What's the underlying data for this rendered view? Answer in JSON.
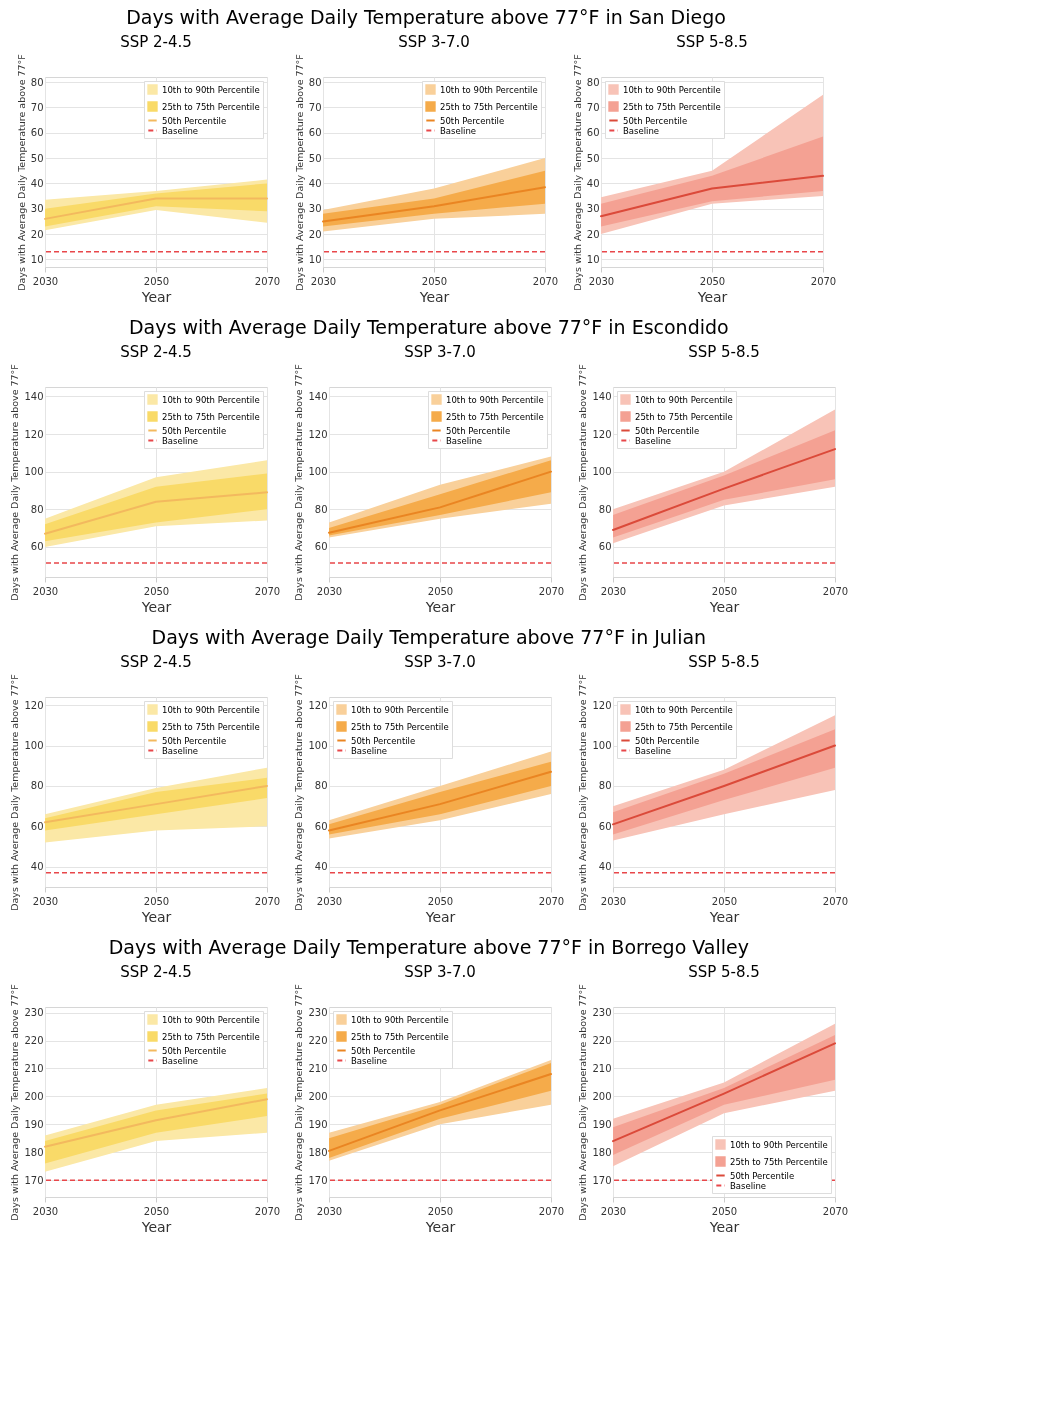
{
  "chart_data": [
    {
      "type": "line",
      "subtitle": "Days with Average Daily Temperature above 77°F in San Diego",
      "title": "SSP 2-4.5",
      "xlabel": "Year",
      "ylabel": "Days with Average Daily Temperature above 77°F",
      "x": [
        2030,
        2050,
        2070
      ],
      "xlim": [
        2030,
        2070
      ],
      "xticks": [
        2030,
        2050,
        2070
      ],
      "ylim": [
        7,
        82
      ],
      "yticks": [
        10,
        20,
        30,
        40,
        50,
        60,
        70,
        80
      ],
      "grid": true,
      "legend": "top right",
      "series": [
        {
          "name": "10th to 90th Percentile",
          "type": "area",
          "color": "#fbe8a6",
          "values": [
            null,
            null,
            null
          ],
          "lower": [
            21.5,
            29.5,
            24.5
          ],
          "upper": [
            33.5,
            37,
            41.5
          ]
        },
        {
          "name": "25th to 75th Percentile",
          "type": "area",
          "color": "#f9da68",
          "values": [
            null,
            null,
            null
          ],
          "lower": [
            23,
            31,
            29
          ],
          "upper": [
            30,
            36,
            40
          ]
        },
        {
          "name": "50th Percentile",
          "type": "line",
          "color": "#f3b95e",
          "values": [
            26,
            34,
            34
          ]
        }
      ],
      "ref_lines": [
        {
          "axis": "y",
          "value": 13,
          "label": "Baseline",
          "color": "#e8474a",
          "line_style": "dashed"
        }
      ]
    },
    {
      "type": "line",
      "title": "SSP 3-7.0",
      "xlabel": "Year",
      "ylabel": "Days with Average Daily Temperature above 77°F",
      "x": [
        2030,
        2050,
        2070
      ],
      "xlim": [
        2030,
        2070
      ],
      "xticks": [
        2030,
        2050,
        2070
      ],
      "ylim": [
        7,
        82
      ],
      "yticks": [
        10,
        20,
        30,
        40,
        50,
        60,
        70,
        80
      ],
      "grid": true,
      "legend": "top right",
      "series": [
        {
          "name": "10th to 90th Percentile",
          "type": "area",
          "color": "#f9d09a",
          "values": [
            null,
            null,
            null
          ],
          "lower": [
            21,
            26,
            28
          ],
          "upper": [
            29.5,
            38,
            50
          ]
        },
        {
          "name": "25th to 75th Percentile",
          "type": "area",
          "color": "#f5ab4a",
          "values": [
            null,
            null,
            null
          ],
          "lower": [
            23,
            28,
            32
          ],
          "upper": [
            28,
            34,
            45
          ]
        },
        {
          "name": "50th Percentile",
          "type": "line",
          "color": "#ea8522",
          "values": [
            25,
            31,
            38.5
          ]
        }
      ],
      "ref_lines": [
        {
          "axis": "y",
          "value": 13,
          "label": "Baseline",
          "color": "#e8474a",
          "line_style": "dashed"
        }
      ]
    },
    {
      "type": "line",
      "title": "SSP 5-8.5",
      "xlabel": "Year",
      "ylabel": "Days with Average Daily Temperature above 77°F",
      "x": [
        2030,
        2050,
        2070
      ],
      "xlim": [
        2030,
        2070
      ],
      "xticks": [
        2030,
        2050,
        2070
      ],
      "ylim": [
        7,
        82
      ],
      "yticks": [
        10,
        20,
        30,
        40,
        50,
        60,
        70,
        80
      ],
      "grid": true,
      "legend": "top left",
      "series": [
        {
          "name": "10th to 90th Percentile",
          "type": "area",
          "color": "#f8c3b7",
          "values": [
            null,
            null,
            null
          ],
          "lower": [
            20,
            32,
            35
          ],
          "upper": [
            34.5,
            45,
            75
          ]
        },
        {
          "name": "25th to 75th Percentile",
          "type": "area",
          "color": "#f4a193",
          "values": [
            null,
            null,
            null
          ],
          "lower": [
            23,
            33,
            37
          ],
          "upper": [
            32,
            43,
            58.5
          ]
        },
        {
          "name": "50th Percentile",
          "type": "line",
          "color": "#db4a3a",
          "values": [
            27,
            38,
            43
          ]
        }
      ],
      "ref_lines": [
        {
          "axis": "y",
          "value": 13,
          "label": "Baseline",
          "color": "#e8474a",
          "line_style": "dashed"
        }
      ]
    },
    {
      "type": "line",
      "subtitle": "Days with Average Daily Temperature above 77°F in Escondido",
      "title": "SSP 2-4.5",
      "xlabel": "Year",
      "ylabel": "Days with Average Daily Temperature above 77°F",
      "x": [
        2030,
        2050,
        2070
      ],
      "xlim": [
        2030,
        2070
      ],
      "xticks": [
        2030,
        2050,
        2070
      ],
      "ylim": [
        44,
        145
      ],
      "yticks": [
        60,
        80,
        100,
        120,
        140
      ],
      "grid": true,
      "legend": "top right",
      "series": [
        {
          "name": "10th to 90th Percentile",
          "type": "area",
          "color": "#fbe8a6",
          "values": [
            null,
            null,
            null
          ],
          "lower": [
            60,
            71,
            74
          ],
          "upper": [
            75,
            97,
            106
          ]
        },
        {
          "name": "25th to 75th Percentile",
          "type": "area",
          "color": "#f9da68",
          "values": [
            null,
            null,
            null
          ],
          "lower": [
            63,
            73,
            80
          ],
          "upper": [
            72,
            92,
            99
          ]
        },
        {
          "name": "50th Percentile",
          "type": "line",
          "color": "#f3b95e",
          "values": [
            67,
            84,
            89
          ]
        }
      ],
      "ref_lines": [
        {
          "axis": "y",
          "value": 51.5,
          "label": "Baseline",
          "color": "#e8474a",
          "line_style": "dashed"
        }
      ]
    },
    {
      "type": "line",
      "title": "SSP 3-7.0",
      "xlabel": "Year",
      "ylabel": "Days with Average Daily Temperature above 77°F",
      "x": [
        2030,
        2050,
        2070
      ],
      "xlim": [
        2030,
        2070
      ],
      "xticks": [
        2030,
        2050,
        2070
      ],
      "ylim": [
        44,
        145
      ],
      "yticks": [
        60,
        80,
        100,
        120,
        140
      ],
      "grid": true,
      "legend": "top right",
      "series": [
        {
          "name": "10th to 90th Percentile",
          "type": "area",
          "color": "#f9d09a",
          "values": [
            null,
            null,
            null
          ],
          "lower": [
            65,
            75,
            83
          ],
          "upper": [
            73,
            93,
            108
          ]
        },
        {
          "name": "25th to 75th Percentile",
          "type": "area",
          "color": "#f5ab4a",
          "values": [
            null,
            null,
            null
          ],
          "lower": [
            66,
            77,
            89
          ],
          "upper": [
            70,
            88,
            106
          ]
        },
        {
          "name": "50th Percentile",
          "type": "line",
          "color": "#ea8522",
          "values": [
            67.5,
            81,
            100
          ]
        }
      ],
      "ref_lines": [
        {
          "axis": "y",
          "value": 51.5,
          "label": "Baseline",
          "color": "#e8474a",
          "line_style": "dashed"
        }
      ]
    },
    {
      "type": "line",
      "title": "SSP 5-8.5",
      "xlabel": "Year",
      "ylabel": "Days with Average Daily Temperature above 77°F",
      "x": [
        2030,
        2050,
        2070
      ],
      "xlim": [
        2030,
        2070
      ],
      "xticks": [
        2030,
        2050,
        2070
      ],
      "ylim": [
        44,
        145
      ],
      "yticks": [
        60,
        80,
        100,
        120,
        140
      ],
      "grid": true,
      "legend": "top left",
      "series": [
        {
          "name": "10th to 90th Percentile",
          "type": "area",
          "color": "#f8c3b7",
          "values": [
            null,
            null,
            null
          ],
          "lower": [
            62,
            82,
            92
          ],
          "upper": [
            80,
            100,
            133
          ]
        },
        {
          "name": "25th to 75th Percentile",
          "type": "area",
          "color": "#f4a193",
          "values": [
            null,
            null,
            null
          ],
          "lower": [
            65,
            85,
            96
          ],
          "upper": [
            77,
            98,
            122
          ]
        },
        {
          "name": "50th Percentile",
          "type": "line",
          "color": "#db4a3a",
          "values": [
            69,
            91,
            112
          ]
        }
      ],
      "ref_lines": [
        {
          "axis": "y",
          "value": 51.5,
          "label": "Baseline",
          "color": "#e8474a",
          "line_style": "dashed"
        }
      ]
    },
    {
      "type": "line",
      "subtitle": "Days with Average Daily Temperature above 77°F in Julian",
      "title": "SSP 2-4.5",
      "xlabel": "Year",
      "ylabel": "Days with Average Daily Temperature above 77°F",
      "x": [
        2030,
        2050,
        2070
      ],
      "xlim": [
        2030,
        2070
      ],
      "xticks": [
        2030,
        2050,
        2070
      ],
      "ylim": [
        30,
        124
      ],
      "yticks": [
        40,
        60,
        80,
        100,
        120
      ],
      "grid": true,
      "legend": "top right",
      "series": [
        {
          "name": "10th to 90th Percentile",
          "type": "area",
          "color": "#fbe8a6",
          "values": [
            null,
            null,
            null
          ],
          "lower": [
            52,
            58,
            60
          ],
          "upper": [
            66,
            79,
            89
          ]
        },
        {
          "name": "25th to 75th Percentile",
          "type": "area",
          "color": "#f9da68",
          "values": [
            null,
            null,
            null
          ],
          "lower": [
            58,
            66,
            74
          ],
          "upper": [
            64,
            77,
            84
          ]
        },
        {
          "name": "50th Percentile",
          "type": "line",
          "color": "#f3b95e",
          "values": [
            62,
            71,
            80
          ]
        }
      ],
      "ref_lines": [
        {
          "axis": "y",
          "value": 37,
          "label": "Baseline",
          "color": "#e8474a",
          "line_style": "dashed"
        }
      ]
    },
    {
      "type": "line",
      "title": "SSP 3-7.0",
      "xlabel": "Year",
      "ylabel": "Days with Average Daily Temperature above 77°F",
      "x": [
        2030,
        2050,
        2070
      ],
      "xlim": [
        2030,
        2070
      ],
      "xticks": [
        2030,
        2050,
        2070
      ],
      "ylim": [
        30,
        124
      ],
      "yticks": [
        40,
        60,
        80,
        100,
        120
      ],
      "grid": true,
      "legend": "top left",
      "series": [
        {
          "name": "10th to 90th Percentile",
          "type": "area",
          "color": "#f9d09a",
          "values": [
            null,
            null,
            null
          ],
          "lower": [
            54,
            63,
            76
          ],
          "upper": [
            63,
            80,
            97
          ]
        },
        {
          "name": "25th to 75th Percentile",
          "type": "area",
          "color": "#f5ab4a",
          "values": [
            null,
            null,
            null
          ],
          "lower": [
            56,
            66,
            80
          ],
          "upper": [
            61,
            77,
            92
          ]
        },
        {
          "name": "50th Percentile",
          "type": "line",
          "color": "#ea8522",
          "values": [
            58,
            71,
            87
          ]
        }
      ],
      "ref_lines": [
        {
          "axis": "y",
          "value": 37,
          "label": "Baseline",
          "color": "#e8474a",
          "line_style": "dashed"
        }
      ]
    },
    {
      "type": "line",
      "title": "SSP 5-8.5",
      "xlabel": "Year",
      "ylabel": "Days with Average Daily Temperature above 77°F",
      "x": [
        2030,
        2050,
        2070
      ],
      "xlim": [
        2030,
        2070
      ],
      "xticks": [
        2030,
        2050,
        2070
      ],
      "ylim": [
        30,
        124
      ],
      "yticks": [
        40,
        60,
        80,
        100,
        120
      ],
      "grid": true,
      "legend": "top left",
      "series": [
        {
          "name": "10th to 90th Percentile",
          "type": "area",
          "color": "#f8c3b7",
          "values": [
            null,
            null,
            null
          ],
          "lower": [
            53,
            66,
            78
          ],
          "upper": [
            70,
            88,
            115
          ]
        },
        {
          "name": "25th to 75th Percentile",
          "type": "area",
          "color": "#f4a193",
          "values": [
            null,
            null,
            null
          ],
          "lower": [
            56,
            73,
            89
          ],
          "upper": [
            67,
            86,
            108
          ]
        },
        {
          "name": "50th Percentile",
          "type": "line",
          "color": "#db4a3a",
          "values": [
            61,
            80,
            100
          ]
        }
      ],
      "ref_lines": [
        {
          "axis": "y",
          "value": 37,
          "label": "Baseline",
          "color": "#e8474a",
          "line_style": "dashed"
        }
      ]
    },
    {
      "type": "line",
      "subtitle": "Days with Average Daily Temperature above 77°F in Borrego Valley",
      "title": "SSP 2-4.5",
      "xlabel": "Year",
      "ylabel": "Days with Average Daily Temperature above 77°F",
      "x": [
        2030,
        2050,
        2070
      ],
      "xlim": [
        2030,
        2070
      ],
      "xticks": [
        2030,
        2050,
        2070
      ],
      "ylim": [
        164,
        232
      ],
      "yticks": [
        170,
        180,
        190,
        200,
        210,
        220,
        230
      ],
      "grid": true,
      "legend": "top right",
      "series": [
        {
          "name": "10th to 90th Percentile",
          "type": "area",
          "color": "#fbe8a6",
          "values": [
            null,
            null,
            null
          ],
          "lower": [
            173,
            184,
            187
          ],
          "upper": [
            186,
            197,
            203
          ]
        },
        {
          "name": "25th to 75th Percentile",
          "type": "area",
          "color": "#f9da68",
          "values": [
            null,
            null,
            null
          ],
          "lower": [
            176,
            187,
            193
          ],
          "upper": [
            184,
            195,
            201
          ]
        },
        {
          "name": "50th Percentile",
          "type": "line",
          "color": "#f3b95e",
          "values": [
            182,
            191.5,
            199
          ]
        }
      ],
      "ref_lines": [
        {
          "axis": "y",
          "value": 170,
          "label": "Baseline",
          "color": "#e8474a",
          "line_style": "dashed"
        }
      ]
    },
    {
      "type": "line",
      "title": "SSP 3-7.0",
      "xlabel": "Year",
      "ylabel": "Days with Average Daily Temperature above 77°F",
      "x": [
        2030,
        2050,
        2070
      ],
      "xlim": [
        2030,
        2070
      ],
      "xticks": [
        2030,
        2050,
        2070
      ],
      "ylim": [
        164,
        232
      ],
      "yticks": [
        170,
        180,
        190,
        200,
        210,
        220,
        230
      ],
      "grid": true,
      "legend": "top left",
      "series": [
        {
          "name": "10th to 90th Percentile",
          "type": "area",
          "color": "#f9d09a",
          "values": [
            null,
            null,
            null
          ],
          "lower": [
            177,
            190,
            197
          ],
          "upper": [
            187,
            198,
            213
          ]
        },
        {
          "name": "25th to 75th Percentile",
          "type": "area",
          "color": "#f5ab4a",
          "values": [
            null,
            null,
            null
          ],
          "lower": [
            178,
            192,
            202
          ],
          "upper": [
            185,
            197,
            212
          ]
        },
        {
          "name": "50th Percentile",
          "type": "line",
          "color": "#ea8522",
          "values": [
            180.5,
            195,
            208
          ]
        }
      ],
      "ref_lines": [
        {
          "axis": "y",
          "value": 170,
          "label": "Baseline",
          "color": "#e8474a",
          "line_style": "dashed"
        }
      ]
    },
    {
      "type": "line",
      "title": "SSP 5-8.5",
      "xlabel": "Year",
      "ylabel": "Days with Average Daily Temperature above 77°F",
      "x": [
        2030,
        2050,
        2070
      ],
      "xlim": [
        2030,
        2070
      ],
      "xticks": [
        2030,
        2050,
        2070
      ],
      "ylim": [
        164,
        232
      ],
      "yticks": [
        170,
        180,
        190,
        200,
        210,
        220,
        230
      ],
      "grid": true,
      "legend": "bottom right",
      "series": [
        {
          "name": "10th to 90th Percentile",
          "type": "area",
          "color": "#f8c3b7",
          "values": [
            null,
            null,
            null
          ],
          "lower": [
            175,
            194,
            202
          ],
          "upper": [
            192,
            205,
            226
          ]
        },
        {
          "name": "25th to 75th Percentile",
          "type": "area",
          "color": "#f4a193",
          "values": [
            null,
            null,
            null
          ],
          "lower": [
            179,
            197,
            206
          ],
          "upper": [
            189,
            203,
            222
          ]
        },
        {
          "name": "50th Percentile",
          "type": "line",
          "color": "#db4a3a",
          "values": [
            184,
            201,
            219
          ]
        }
      ],
      "ref_lines": [
        {
          "axis": "y",
          "value": 170,
          "label": "Baseline",
          "color": "#e8474a",
          "line_style": "dashed"
        }
      ]
    }
  ]
}
